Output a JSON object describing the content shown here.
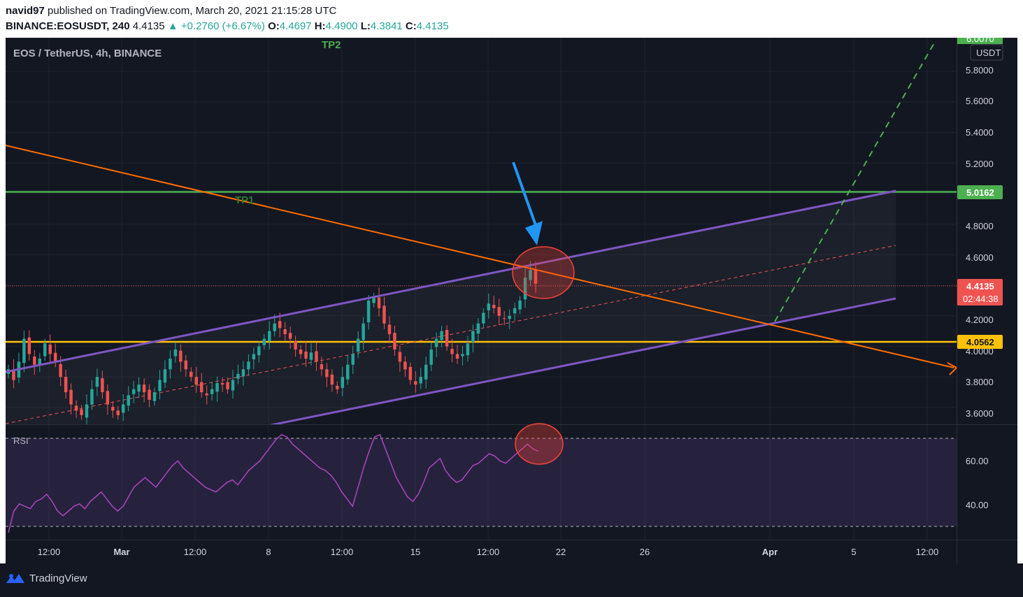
{
  "header": {
    "publisher": "navid97",
    "published_text": "published on TradingView.com, March 20, 2021 21:15:28 UTC",
    "symbol": "BINANCE:EOSUSDT, 240",
    "last": "4.4135",
    "change": "▲ +0.2760 (+6.67%)",
    "open_label": "O:",
    "open": "4.4697",
    "high_label": "H:",
    "high": "4.4900",
    "low_label": "L:",
    "low": "4.3841",
    "close_label": "C:",
    "close": "4.4135"
  },
  "chart_data": {
    "type": "candlestick",
    "title": "EOS / TetherUS, 4h, BINANCE",
    "currency": "USDT",
    "ylim": [
      3.49,
      6.02
    ],
    "y_ticks": [
      "5.8000",
      "5.6000",
      "5.4000",
      "5.2000",
      "4.8000",
      "4.6000",
      "4.2000",
      "4.0000",
      "3.8000",
      "3.6000"
    ],
    "x_ticks": [
      "12:00",
      "Mar",
      "12:00",
      "8",
      "12:00",
      "15",
      "12:00",
      "22",
      "26",
      "Apr",
      "5",
      "12:00"
    ],
    "last_price": {
      "value": "4.4135",
      "countdown": "02:44:38",
      "color": "#ef5350"
    },
    "levels": [
      {
        "name": "TP1",
        "value": 5.0162,
        "label": "5.0162",
        "color": "#4caf50"
      },
      {
        "name": "support",
        "value": 4.0562,
        "label": "4.0562",
        "color": "#ffc107"
      }
    ],
    "annotations": [
      "TP1",
      "TP2"
    ],
    "top_partial_label": "6.0070",
    "close_series": [
      3.85,
      3.78,
      3.9,
      4.05,
      3.95,
      3.88,
      3.92,
      4.02,
      3.95,
      3.9,
      3.8,
      3.7,
      3.62,
      3.58,
      3.55,
      3.62,
      3.72,
      3.8,
      3.7,
      3.62,
      3.58,
      3.55,
      3.62,
      3.68,
      3.72,
      3.75,
      3.7,
      3.65,
      3.7,
      3.78,
      3.85,
      3.92,
      3.98,
      3.9,
      3.85,
      3.8,
      3.75,
      3.7,
      3.68,
      3.72,
      3.76,
      3.75,
      3.72,
      3.78,
      3.82,
      3.85,
      3.9,
      3.95,
      4.0,
      4.05,
      4.1,
      4.15,
      4.12,
      4.08,
      4.05,
      3.98,
      3.95,
      3.92,
      3.96,
      3.9,
      3.85,
      3.8,
      3.75,
      3.72,
      3.8,
      3.88,
      3.95,
      4.05,
      4.15,
      4.3,
      4.32,
      4.25,
      4.15,
      4.08,
      3.98,
      3.9,
      3.85,
      3.78,
      3.75,
      3.8,
      3.88,
      3.98,
      4.05,
      4.1,
      4.0,
      3.95,
      3.92,
      3.95,
      4.02,
      4.1,
      4.15,
      4.22,
      4.28,
      4.25,
      4.2,
      4.18,
      4.2,
      4.25,
      4.3,
      4.45,
      4.5,
      4.41
    ],
    "rsi": {
      "label": "RSI",
      "ylim": [
        26,
        74
      ],
      "bands": [
        70,
        30
      ],
      "y_ticks": [
        "60.00",
        "40.00"
      ],
      "values": [
        29,
        38,
        41,
        40,
        39,
        42,
        43,
        45,
        42,
        38,
        36,
        38,
        40,
        41,
        39,
        42,
        44,
        46,
        43,
        40,
        38,
        40,
        44,
        48,
        50,
        52,
        50,
        48,
        51,
        54,
        57,
        59,
        56,
        54,
        52,
        50,
        48,
        47,
        46,
        48,
        50,
        51,
        49,
        52,
        55,
        57,
        59,
        62,
        65,
        68,
        70,
        69,
        66,
        64,
        62,
        60,
        58,
        56,
        55,
        53,
        50,
        46,
        43,
        40,
        48,
        56,
        63,
        69,
        70,
        64,
        58,
        52,
        48,
        44,
        42,
        45,
        50,
        56,
        58,
        60,
        55,
        52,
        50,
        51,
        54,
        57,
        58,
        60,
        62,
        61,
        59,
        58,
        60,
        62,
        64,
        66,
        64,
        63
      ]
    },
    "grid": true
  }
}
